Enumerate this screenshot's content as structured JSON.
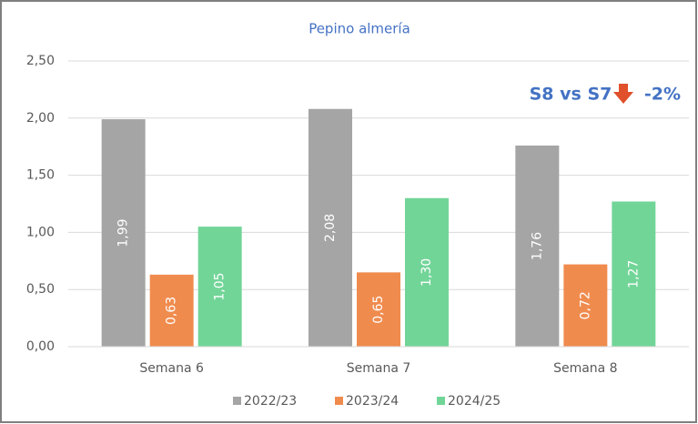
{
  "chart_data": {
    "type": "bar",
    "title": "Pepino almería",
    "categories": [
      "Semana 6",
      "Semana 7",
      "Semana 8"
    ],
    "series": [
      {
        "name": "2022/23",
        "color": "#a5a5a5",
        "values": [
          1.99,
          2.08,
          1.76
        ],
        "value_labels": [
          "1,99",
          "2,08",
          "1,76"
        ]
      },
      {
        "name": "2023/24",
        "color": "#f08b4e",
        "values": [
          0.63,
          0.65,
          0.72
        ],
        "value_labels": [
          "0,63",
          "0,65",
          "0,72"
        ]
      },
      {
        "name": "2024/25",
        "color": "#72d598",
        "values": [
          1.05,
          1.3,
          1.27
        ],
        "value_labels": [
          "1,05",
          "1,30",
          "1,27"
        ]
      }
    ],
    "ylim": [
      0,
      2.5
    ],
    "yticks": [
      {
        "value": 0,
        "label": "0,00"
      },
      {
        "value": 0.5,
        "label": "0,50"
      },
      {
        "value": 1,
        "label": "1,00"
      },
      {
        "value": 1.5,
        "label": "1,50"
      },
      {
        "value": 2,
        "label": "2,00"
      },
      {
        "value": 2.5,
        "label": "2,50"
      }
    ],
    "grid": true,
    "legend": "bottom",
    "annotations": [
      "S8 vs S7",
      "-2%"
    ]
  }
}
